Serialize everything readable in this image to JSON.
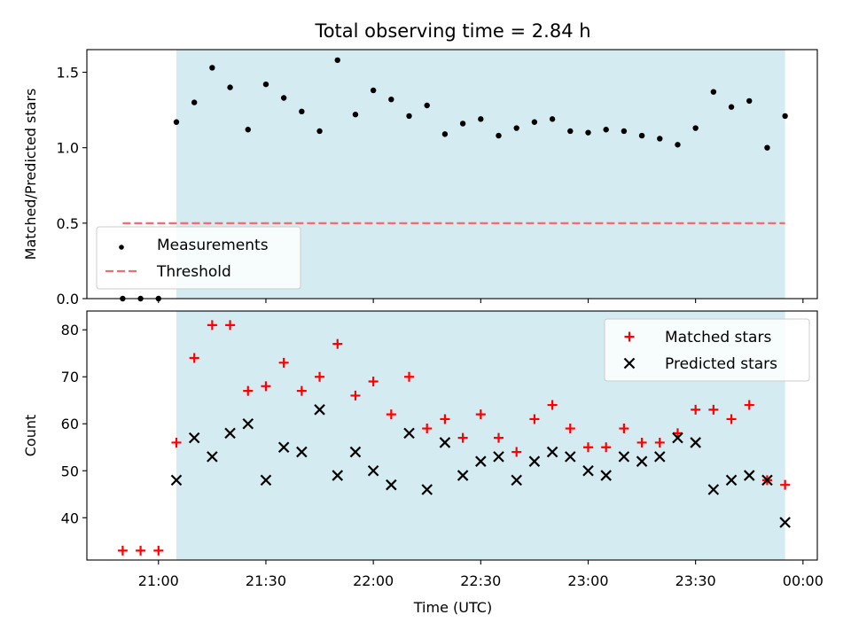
{
  "chart_data": [
    {
      "type": "scatter",
      "title": "Total observing time = 2.84 h",
      "xlabel": "",
      "ylabel": "Matched/Predicted stars",
      "xlim": [
        "20:40",
        "00:04"
      ],
      "ylim": [
        0,
        1.65
      ],
      "yticks": [
        "0.0",
        "0.5",
        "1.0",
        "1.5"
      ],
      "shaded_span": {
        "start": "21:05",
        "end": "23:55",
        "color": "#d4ebf1"
      },
      "threshold": {
        "name": "Threshold",
        "value": 0.5,
        "x_start": "20:50",
        "x_end": "23:55",
        "color": "#f46d6d"
      },
      "legend_position": "lower-left",
      "series": [
        {
          "name": "Measurements",
          "color": "#000000",
          "marker": "dot",
          "x": [
            "20:50",
            "20:55",
            "21:00",
            "21:05",
            "21:10",
            "21:15",
            "21:20",
            "21:25",
            "21:30",
            "21:35",
            "21:40",
            "21:45",
            "21:50",
            "21:55",
            "22:00",
            "22:05",
            "22:10",
            "22:15",
            "22:20",
            "22:25",
            "22:30",
            "22:35",
            "22:40",
            "22:45",
            "22:50",
            "22:55",
            "23:00",
            "23:05",
            "23:10",
            "23:15",
            "23:20",
            "23:25",
            "23:30",
            "23:35",
            "23:40",
            "23:45",
            "23:50",
            "23:55"
          ],
          "y": [
            0,
            0,
            0,
            1.17,
            1.3,
            1.53,
            1.4,
            1.12,
            1.42,
            1.33,
            1.24,
            1.11,
            1.58,
            1.22,
            1.38,
            1.32,
            1.21,
            1.28,
            1.09,
            1.16,
            1.19,
            1.08,
            1.13,
            1.17,
            1.19,
            1.11,
            1.1,
            1.12,
            1.11,
            1.08,
            1.06,
            1.02,
            1.13,
            1.37,
            1.27,
            1.31,
            1.0,
            1.21
          ]
        }
      ]
    },
    {
      "type": "scatter",
      "title": "",
      "xlabel": "Time (UTC)",
      "ylabel": "Count",
      "xlim": [
        "20:40",
        "00:04"
      ],
      "xticks": [
        "21:00",
        "21:30",
        "22:00",
        "22:30",
        "23:00",
        "23:30",
        "00:00"
      ],
      "ylim": [
        31,
        84
      ],
      "yticks": [
        "40",
        "50",
        "60",
        "70",
        "80"
      ],
      "shaded_span": {
        "start": "21:05",
        "end": "23:55",
        "color": "#d4ebf1"
      },
      "legend_position": "upper-right",
      "series": [
        {
          "name": "Matched stars",
          "color": "#ff0000",
          "marker": "plus",
          "x": [
            "20:50",
            "20:55",
            "21:00",
            "21:05",
            "21:10",
            "21:15",
            "21:20",
            "21:25",
            "21:30",
            "21:35",
            "21:40",
            "21:45",
            "21:50",
            "21:55",
            "22:00",
            "22:05",
            "22:10",
            "22:15",
            "22:20",
            "22:25",
            "22:30",
            "22:35",
            "22:40",
            "22:45",
            "22:50",
            "22:55",
            "23:00",
            "23:05",
            "23:10",
            "23:15",
            "23:20",
            "23:25",
            "23:30",
            "23:35",
            "23:40",
            "23:45",
            "23:50",
            "23:55"
          ],
          "y": [
            33,
            33,
            33,
            56,
            74,
            81,
            81,
            67,
            68,
            73,
            67,
            70,
            77,
            66,
            69,
            62,
            70,
            59,
            61,
            57,
            62,
            57,
            54,
            61,
            64,
            59,
            55,
            55,
            59,
            56,
            56,
            58,
            63,
            63,
            61,
            64,
            48,
            47
          ]
        },
        {
          "name": "Predicted stars",
          "color": "#000000",
          "marker": "x",
          "x": [
            "21:05",
            "21:10",
            "21:15",
            "21:20",
            "21:25",
            "21:30",
            "21:35",
            "21:40",
            "21:45",
            "21:50",
            "21:55",
            "22:00",
            "22:05",
            "22:10",
            "22:15",
            "22:20",
            "22:25",
            "22:30",
            "22:35",
            "22:40",
            "22:45",
            "22:50",
            "22:55",
            "23:00",
            "23:05",
            "23:10",
            "23:15",
            "23:20",
            "23:25",
            "23:30",
            "23:35",
            "23:40",
            "23:45",
            "23:50",
            "23:55"
          ],
          "y": [
            48,
            57,
            53,
            58,
            60,
            48,
            55,
            54,
            63,
            49,
            54,
            50,
            47,
            58,
            46,
            56,
            49,
            52,
            53,
            48,
            52,
            54,
            53,
            50,
            49,
            53,
            52,
            53,
            57,
            56,
            46,
            48,
            49,
            48,
            39
          ]
        }
      ]
    }
  ]
}
